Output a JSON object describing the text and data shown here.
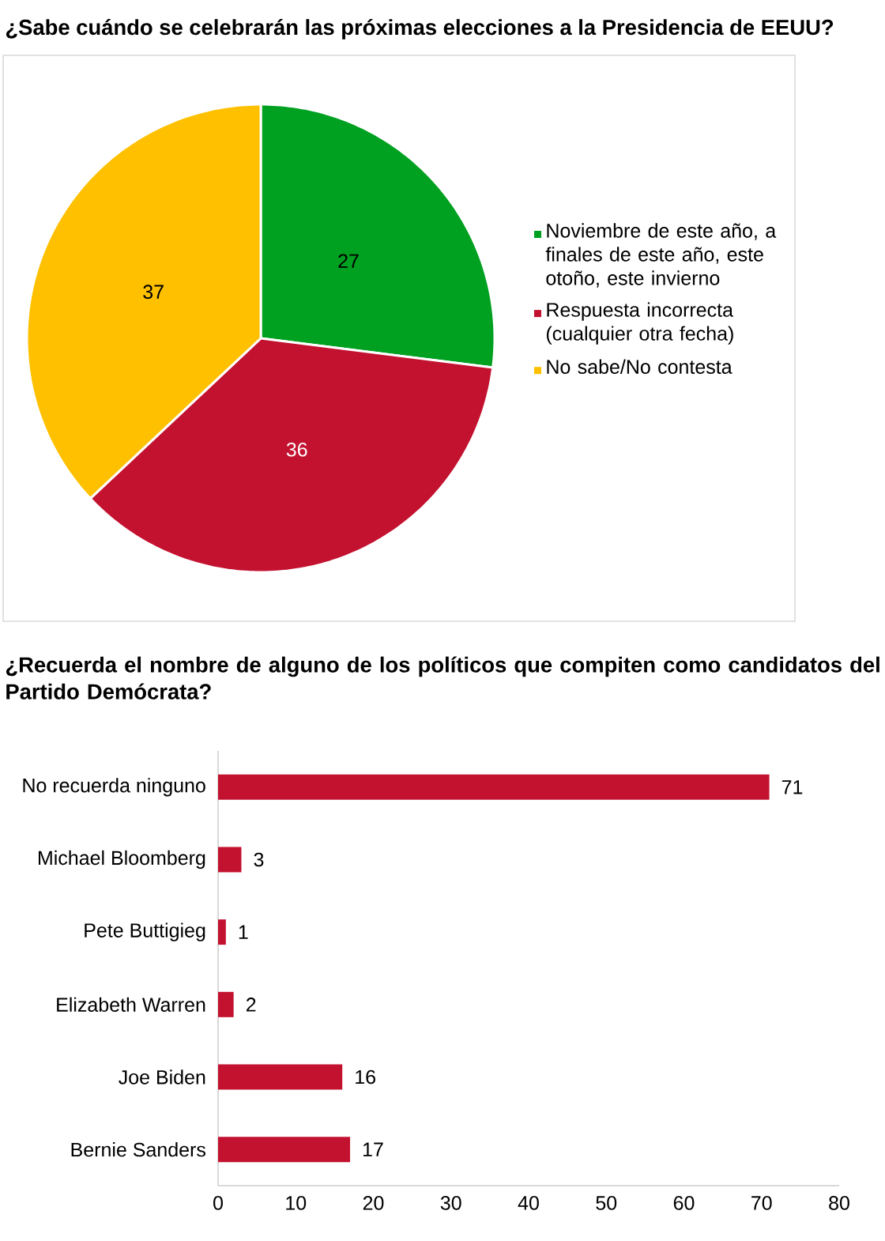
{
  "chart_data": [
    {
      "type": "pie",
      "title": "¿Sabe cuándo se celebrarán las próximas elecciones a la Presidencia de EEUU?",
      "categories": [
        "Noviembre de este año, a finales de este año, este otoño, este invierno",
        "Respuesta incorrecta (cualquier otra fecha)",
        "No sabe/No contesta"
      ],
      "values": [
        27,
        36,
        37
      ],
      "colors": [
        "#00a020",
        "#c31230",
        "#ffc000"
      ],
      "data_labels": true,
      "legend": "right"
    },
    {
      "type": "bar",
      "orientation": "horizontal",
      "title": "¿Recuerda el nombre de alguno de los políticos que compiten como candidatos del Partido Demócrata?",
      "categories": [
        "No recuerda ninguno",
        "Michael Bloomberg",
        "Pete Buttigieg",
        "Elizabeth Warren",
        "Joe Biden",
        "Bernie Sanders"
      ],
      "values": [
        71,
        3,
        1,
        2,
        16,
        17
      ],
      "color": "#c31230",
      "xlim": [
        0,
        80
      ],
      "xticks": [
        0,
        10,
        20,
        30,
        40,
        50,
        60,
        70,
        80
      ],
      "data_labels": true
    }
  ]
}
